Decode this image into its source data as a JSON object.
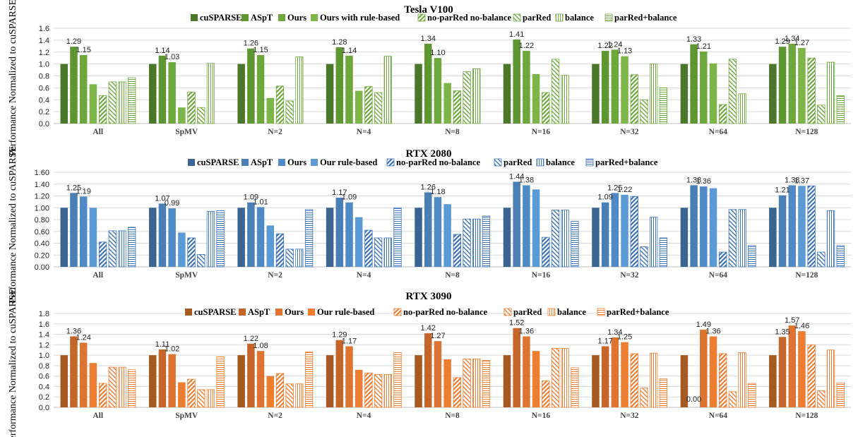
{
  "ylabel": "Performance Normalized to cuSPARSE",
  "chart_data": [
    {
      "type": "bar",
      "title": "Tesla V100",
      "ylim": [
        0,
        1.6
      ],
      "ytick_labels": [
        "0.0",
        "0.2",
        "0.4",
        "0.6",
        "0.8",
        "1.0",
        "1.2",
        "1.4",
        "1.6"
      ],
      "categories": [
        "All",
        "SpMV",
        "N=2",
        "N=4",
        "N=8",
        "N=16",
        "N=32",
        "N=64",
        "N=128"
      ],
      "colors": {
        "cuSPARSE": "#4a7729",
        "ASpT": "#5e9632",
        "Ours": "#6ea83d",
        "rule": "#7db548",
        "pattern": "#6ea83d"
      },
      "series": [
        {
          "name": "cuSPARSE",
          "values": [
            1,
            1,
            1,
            1,
            1,
            1,
            1,
            1,
            1
          ]
        },
        {
          "name": "ASpT",
          "values": [
            1.29,
            1.14,
            1.26,
            1.28,
            1.34,
            1.41,
            1.22,
            1.33,
            1.29
          ]
        },
        {
          "name": "Ours",
          "values": [
            1.15,
            1.03,
            1.15,
            1.14,
            1.1,
            1.22,
            1.24,
            1.21,
            1.34
          ]
        },
        {
          "name": "Ours with rule-based",
          "values": [
            0.66,
            0.27,
            0.43,
            0.55,
            0.68,
            0.83,
            1.13,
            1.01,
            1.27
          ]
        },
        {
          "name": "no-parRed no-balance",
          "values": [
            0.47,
            0.53,
            0.63,
            0.62,
            0.55,
            0.52,
            0.82,
            0.32,
            1.1
          ]
        },
        {
          "name": "parRed",
          "values": [
            0.7,
            0.27,
            0.38,
            0.52,
            0.87,
            1.08,
            0.4,
            1.08,
            0.31
          ]
        },
        {
          "name": "balance",
          "values": [
            0.7,
            1.01,
            1.12,
            1.13,
            0.92,
            0.81,
            1.0,
            0.5,
            1.03
          ]
        },
        {
          "name": "parRed+balance",
          "values": [
            0.77,
            0.0,
            0.0,
            0.0,
            0.0,
            0.0,
            0.6,
            0.0,
            0.47
          ]
        }
      ],
      "data_labels": [
        {
          "cat": 0,
          "series": 1,
          "text": "1.29"
        },
        {
          "cat": 0,
          "series": 2,
          "text": "1.15"
        },
        {
          "cat": 1,
          "series": 1,
          "text": "1.14"
        },
        {
          "cat": 1,
          "series": 2,
          "text": "1.03"
        },
        {
          "cat": 2,
          "series": 1,
          "text": "1.26"
        },
        {
          "cat": 2,
          "series": 2,
          "text": "1.15"
        },
        {
          "cat": 3,
          "series": 1,
          "text": "1.28"
        },
        {
          "cat": 3,
          "series": 2,
          "text": "1.14"
        },
        {
          "cat": 4,
          "series": 1,
          "text": "1.34"
        },
        {
          "cat": 4,
          "series": 2,
          "text": "1.10"
        },
        {
          "cat": 5,
          "series": 1,
          "text": "1.41"
        },
        {
          "cat": 5,
          "series": 2,
          "text": "1.22"
        },
        {
          "cat": 6,
          "series": 1,
          "text": "1.22"
        },
        {
          "cat": 6,
          "series": 2,
          "text": "1.24"
        },
        {
          "cat": 6,
          "series": 3,
          "text": "1.13"
        },
        {
          "cat": 7,
          "series": 1,
          "text": "1.33"
        },
        {
          "cat": 7,
          "series": 2,
          "text": "1.21"
        },
        {
          "cat": 8,
          "series": 1,
          "text": "1.29"
        },
        {
          "cat": 8,
          "series": 2,
          "text": "1.34"
        },
        {
          "cat": 8,
          "series": 3,
          "text": "1.27"
        }
      ]
    },
    {
      "type": "bar",
      "title": "RTX 2080",
      "ylim": [
        0,
        1.6
      ],
      "ytick_labels": [
        "0.00",
        "0.20",
        "0.40",
        "0.60",
        "0.80",
        "1.00",
        "1.20",
        "1.40",
        "1.60"
      ],
      "categories": [
        "All",
        "SpMV",
        "N=2",
        "N=4",
        "N=8",
        "N=16",
        "N=32",
        "N=64",
        "N=128"
      ],
      "colors": {
        "cuSPARSE": "#3a6591",
        "ASpT": "#4a7fb6",
        "Ours": "#4f8ac6",
        "rule": "#5b9bd5",
        "pattern": "#3d73b9"
      },
      "series": [
        {
          "name": "cuSPARSE",
          "values": [
            1,
            1,
            1,
            1,
            1,
            1,
            1,
            1,
            1
          ]
        },
        {
          "name": "ASpT",
          "values": [
            1.25,
            1.07,
            1.09,
            1.17,
            1.26,
            1.44,
            1.09,
            1.38,
            1.21
          ]
        },
        {
          "name": "Ours",
          "values": [
            1.19,
            0.99,
            1.01,
            1.09,
            1.18,
            1.38,
            1.25,
            1.36,
            1.38
          ]
        },
        {
          "name": "Our rule-based",
          "values": [
            1.0,
            0.58,
            0.7,
            0.84,
            1.06,
            1.31,
            1.22,
            1.33,
            1.37
          ]
        },
        {
          "name": "no-parRed no-balance",
          "values": [
            0.42,
            0.49,
            0.56,
            0.62,
            0.55,
            0.5,
            1.19,
            0.25,
            1.37
          ]
        },
        {
          "name": "parRed",
          "values": [
            0.61,
            0.21,
            0.3,
            0.49,
            0.81,
            0.96,
            0.34,
            0.97,
            0.25
          ]
        },
        {
          "name": "balance",
          "values": [
            0.61,
            0.94,
            0.3,
            0.49,
            0.81,
            0.96,
            0.84,
            0.97,
            0.95
          ]
        },
        {
          "name": "parRed+balance",
          "values": [
            0.67,
            0.95,
            0.97,
            1.0,
            0.86,
            0.77,
            0.49,
            0.36,
            0.36
          ]
        }
      ],
      "data_labels": [
        {
          "cat": 0,
          "series": 1,
          "text": "1.25"
        },
        {
          "cat": 0,
          "series": 2,
          "text": "1.19"
        },
        {
          "cat": 1,
          "series": 1,
          "text": "1.07"
        },
        {
          "cat": 1,
          "series": 2,
          "text": "0.99"
        },
        {
          "cat": 2,
          "series": 1,
          "text": "1.09"
        },
        {
          "cat": 2,
          "series": 2,
          "text": "1.01"
        },
        {
          "cat": 3,
          "series": 1,
          "text": "1.17"
        },
        {
          "cat": 3,
          "series": 2,
          "text": "1.09"
        },
        {
          "cat": 4,
          "series": 1,
          "text": "1.26"
        },
        {
          "cat": 4,
          "series": 2,
          "text": "1.18"
        },
        {
          "cat": 5,
          "series": 1,
          "text": "1.44"
        },
        {
          "cat": 5,
          "series": 2,
          "text": "1.38"
        },
        {
          "cat": 6,
          "series": 1,
          "text": "1.09"
        },
        {
          "cat": 6,
          "series": 2,
          "text": "1.25"
        },
        {
          "cat": 6,
          "series": 3,
          "text": "1.22"
        },
        {
          "cat": 7,
          "series": 1,
          "text": "1.38"
        },
        {
          "cat": 7,
          "series": 2,
          "text": "1.36"
        },
        {
          "cat": 8,
          "series": 1,
          "text": "1.21"
        },
        {
          "cat": 8,
          "series": 2,
          "text": "1.38"
        },
        {
          "cat": 8,
          "series": 3,
          "text": "1.37"
        }
      ]
    },
    {
      "type": "bar",
      "title": "RTX 3090",
      "ylim": [
        0,
        1.8
      ],
      "ytick_labels": [
        "0.0",
        "0.2",
        "0.4",
        "0.6",
        "0.8",
        "1.0",
        "1.2",
        "1.4",
        "1.6",
        "1.8"
      ],
      "categories": [
        "All",
        "SpMV",
        "N=2",
        "N=4",
        "N=8",
        "N=16",
        "N=32",
        "N=64",
        "N=128"
      ],
      "colors": {
        "cuSPARSE": "#a65a22",
        "ASpT": "#c5652a",
        "Ours": "#dd7431",
        "rule": "#ed7d31",
        "pattern": "#ed7d31"
      },
      "series": [
        {
          "name": "cuSPARSE",
          "values": [
            1,
            1,
            1,
            1,
            1,
            1,
            1,
            1,
            1
          ]
        },
        {
          "name": "ASpT",
          "values": [
            1.36,
            1.11,
            1.22,
            1.29,
            1.42,
            1.52,
            1.17,
            0.0,
            1.35
          ]
        },
        {
          "name": "Ours",
          "values": [
            1.24,
            1.02,
            1.08,
            1.17,
            1.27,
            1.36,
            1.34,
            1.49,
            1.57
          ]
        },
        {
          "name": "Our rule-based",
          "values": [
            0.85,
            0.48,
            0.6,
            0.72,
            0.92,
            1.08,
            1.25,
            1.36,
            1.46
          ]
        },
        {
          "name": "no-parRed no-balance",
          "values": [
            0.46,
            0.54,
            0.65,
            0.66,
            0.57,
            0.51,
            1.03,
            1.03,
            1.2
          ]
        },
        {
          "name": "parRed",
          "values": [
            0.77,
            0.34,
            0.45,
            0.63,
            0.93,
            1.13,
            0.37,
            0.3,
            0.32
          ]
        },
        {
          "name": "balance",
          "values": [
            0.77,
            0.34,
            0.45,
            0.63,
            0.93,
            1.13,
            1.04,
            1.05,
            1.1
          ]
        },
        {
          "name": "parRed+balance",
          "values": [
            0.72,
            0.97,
            1.06,
            1.05,
            0.9,
            0.76,
            0.55,
            0.46,
            0.47
          ]
        }
      ],
      "data_labels": [
        {
          "cat": 0,
          "series": 1,
          "text": "1.36"
        },
        {
          "cat": 0,
          "series": 2,
          "text": "1.24"
        },
        {
          "cat": 1,
          "series": 1,
          "text": "1.11"
        },
        {
          "cat": 1,
          "series": 2,
          "text": "1.02"
        },
        {
          "cat": 2,
          "series": 1,
          "text": "1.22"
        },
        {
          "cat": 2,
          "series": 2,
          "text": "1.08"
        },
        {
          "cat": 3,
          "series": 1,
          "text": "1.29"
        },
        {
          "cat": 3,
          "series": 2,
          "text": "1.17"
        },
        {
          "cat": 4,
          "series": 1,
          "text": "1.42"
        },
        {
          "cat": 4,
          "series": 2,
          "text": "1.27"
        },
        {
          "cat": 5,
          "series": 1,
          "text": "1.52"
        },
        {
          "cat": 5,
          "series": 2,
          "text": "1.36"
        },
        {
          "cat": 6,
          "series": 1,
          "text": "1.17"
        },
        {
          "cat": 6,
          "series": 2,
          "text": "1.34"
        },
        {
          "cat": 6,
          "series": 3,
          "text": "1.25"
        },
        {
          "cat": 7,
          "series": 1,
          "text": "0.00"
        },
        {
          "cat": 7,
          "series": 2,
          "text": "1.49"
        },
        {
          "cat": 7,
          "series": 3,
          "text": "1.36"
        },
        {
          "cat": 8,
          "series": 1,
          "text": "1.35"
        },
        {
          "cat": 8,
          "series": 2,
          "text": "1.57"
        },
        {
          "cat": 8,
          "series": 3,
          "text": "1.46"
        }
      ]
    }
  ]
}
